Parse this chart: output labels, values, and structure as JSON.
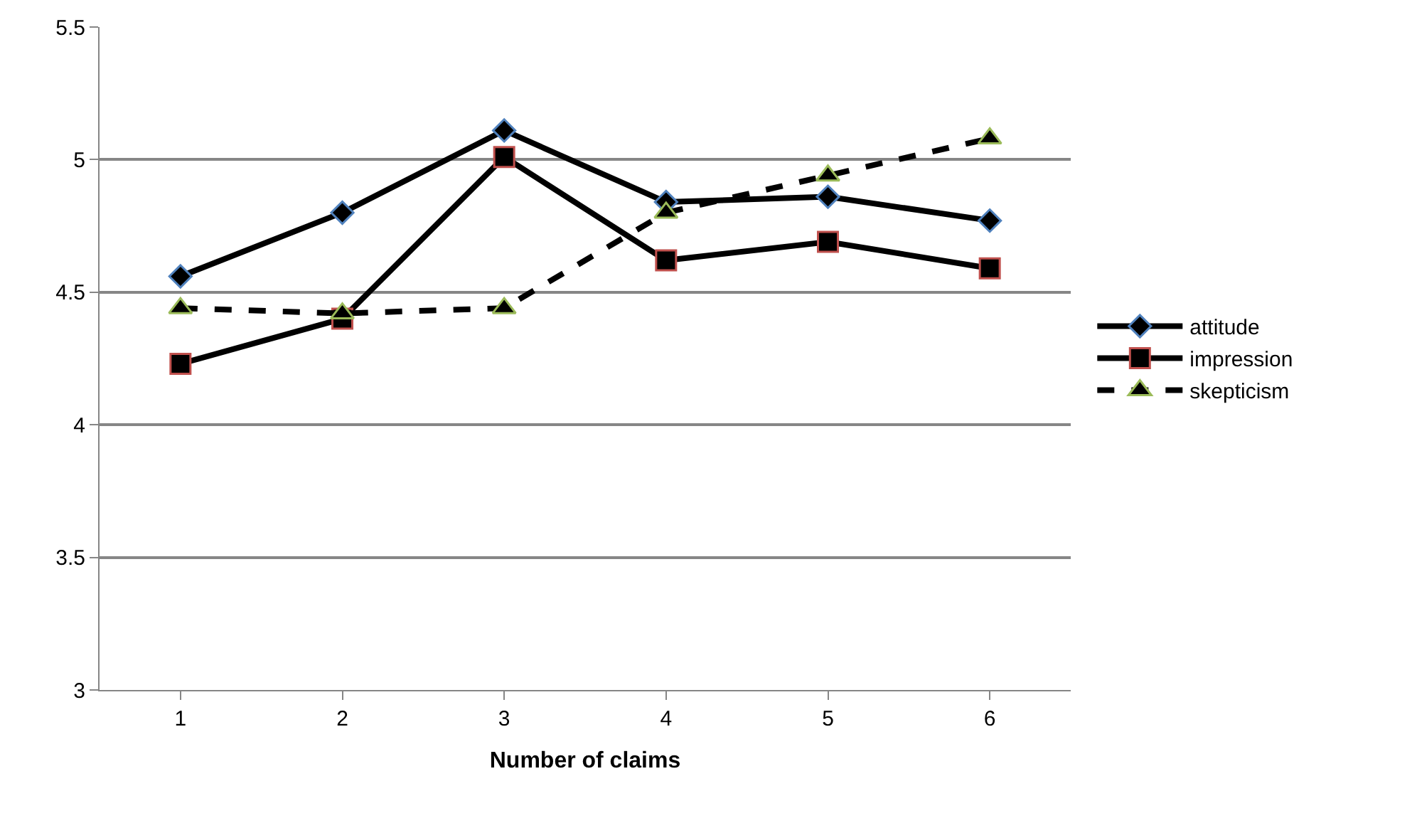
{
  "chart_data": {
    "type": "line",
    "xlabel": "Number of claims",
    "categories": [
      "1",
      "2",
      "3",
      "4",
      "5",
      "6"
    ],
    "series": [
      {
        "name": "attitude",
        "color": "#000000",
        "marker": "diamond",
        "line_style": "solid",
        "values": [
          4.56,
          4.8,
          5.11,
          4.84,
          4.86,
          4.77
        ]
      },
      {
        "name": "impression",
        "color": "#000000",
        "marker": "square",
        "line_style": "solid",
        "values": [
          4.23,
          4.4,
          5.01,
          4.62,
          4.69,
          4.59
        ]
      },
      {
        "name": "skepticism",
        "color": "#000000",
        "marker": "triangle",
        "line_style": "dashed",
        "values": [
          4.44,
          4.42,
          4.44,
          4.8,
          4.94,
          5.08
        ]
      }
    ],
    "ylim": [
      3,
      5.5
    ],
    "yticks": [
      3,
      3.5,
      4,
      4.5,
      5,
      5.5
    ],
    "grid": "y",
    "legend": "right"
  }
}
